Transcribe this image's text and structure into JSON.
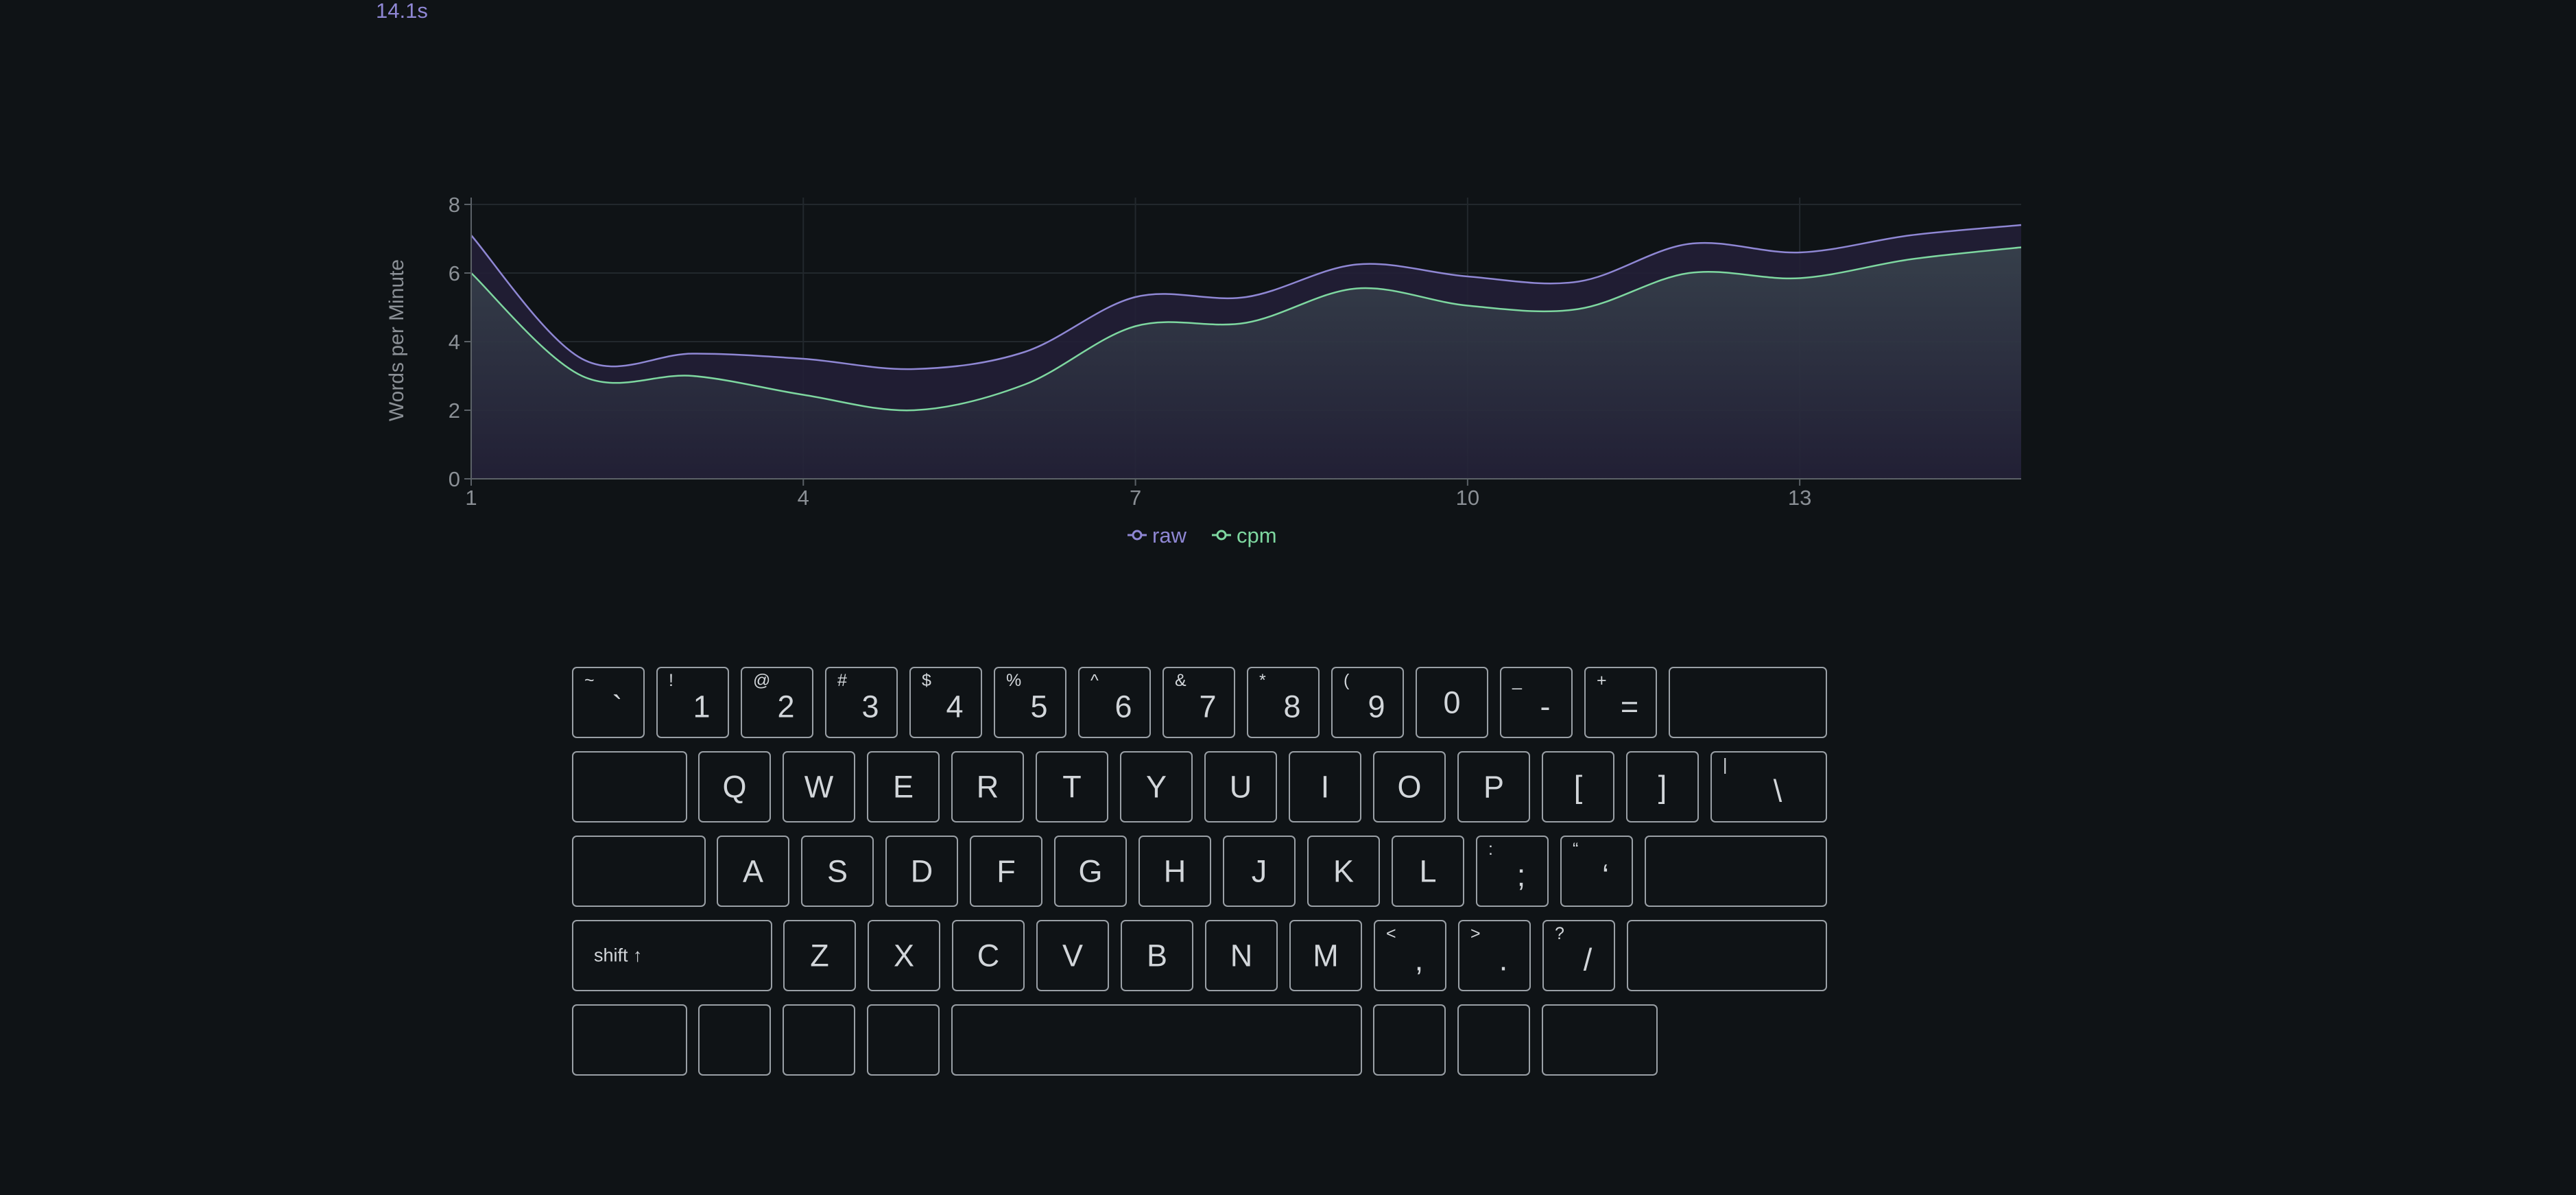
{
  "timer": "14.1s",
  "chart_data": {
    "type": "line",
    "ylabel": "Words per Minute",
    "xlabel": "",
    "xlim": [
      1,
      15
    ],
    "ylim": [
      0,
      8
    ],
    "x_ticks": [
      "1",
      "4",
      "7",
      "10",
      "13"
    ],
    "y_ticks": [
      "0",
      "2",
      "4",
      "6",
      "8"
    ],
    "x": [
      1,
      2,
      3,
      4,
      5,
      6,
      7,
      8,
      9,
      10,
      11,
      12,
      13,
      14,
      15
    ],
    "grid": true,
    "legend_position": "bottom-center",
    "series": [
      {
        "name": "raw",
        "color": "#8f87d4",
        "values": [
          7.1,
          3.5,
          3.65,
          3.5,
          3.2,
          3.7,
          5.3,
          5.3,
          6.25,
          5.9,
          5.75,
          6.85,
          6.6,
          7.1,
          7.4
        ]
      },
      {
        "name": "cpm",
        "color": "#7ed7a0",
        "values": [
          6.0,
          3.0,
          3.0,
          2.45,
          2.0,
          2.75,
          4.45,
          4.55,
          5.55,
          5.05,
          4.95,
          6.0,
          5.85,
          6.4,
          6.75
        ]
      }
    ]
  },
  "keyboard": {
    "rows": [
      [
        {
          "k": "`",
          "s": "~"
        },
        {
          "k": "1",
          "s": "!"
        },
        {
          "k": "2",
          "s": "@"
        },
        {
          "k": "3",
          "s": "#"
        },
        {
          "k": "4",
          "s": "$"
        },
        {
          "k": "5",
          "s": "%"
        },
        {
          "k": "6",
          "s": "^"
        },
        {
          "k": "7",
          "s": "&"
        },
        {
          "k": "8",
          "s": "*"
        },
        {
          "k": "9",
          "s": "("
        },
        {
          "k": "0",
          "s": ""
        },
        {
          "k": "-",
          "s": "_"
        },
        {
          "k": "=",
          "s": "+"
        },
        {
          "k": "",
          "s": ""
        }
      ],
      [
        {
          "k": "",
          "s": ""
        },
        {
          "k": "Q",
          "s": ""
        },
        {
          "k": "W",
          "s": ""
        },
        {
          "k": "E",
          "s": ""
        },
        {
          "k": "R",
          "s": ""
        },
        {
          "k": "T",
          "s": ""
        },
        {
          "k": "Y",
          "s": ""
        },
        {
          "k": "U",
          "s": ""
        },
        {
          "k": "I",
          "s": ""
        },
        {
          "k": "O",
          "s": ""
        },
        {
          "k": "P",
          "s": ""
        },
        {
          "k": "[",
          "s": ""
        },
        {
          "k": "]",
          "s": ""
        },
        {
          "k": "\\",
          "s": "|"
        }
      ],
      [
        {
          "k": "",
          "s": ""
        },
        {
          "k": "A",
          "s": ""
        },
        {
          "k": "S",
          "s": ""
        },
        {
          "k": "D",
          "s": ""
        },
        {
          "k": "F",
          "s": ""
        },
        {
          "k": "G",
          "s": ""
        },
        {
          "k": "H",
          "s": ""
        },
        {
          "k": "J",
          "s": ""
        },
        {
          "k": "K",
          "s": ""
        },
        {
          "k": "L",
          "s": ""
        },
        {
          "k": ";",
          "s": ":"
        },
        {
          "k": "‘",
          "s": "“"
        },
        {
          "k": "",
          "s": ""
        }
      ],
      [
        {
          "k": "shift ↑",
          "s": "",
          "mod": true
        },
        {
          "k": "Z",
          "s": ""
        },
        {
          "k": "X",
          "s": ""
        },
        {
          "k": "C",
          "s": ""
        },
        {
          "k": "V",
          "s": ""
        },
        {
          "k": "B",
          "s": ""
        },
        {
          "k": "N",
          "s": ""
        },
        {
          "k": "M",
          "s": ""
        },
        {
          "k": ",",
          "s": "<"
        },
        {
          "k": ".",
          "s": ">"
        },
        {
          "k": "/",
          "s": "?"
        },
        {
          "k": "",
          "s": ""
        }
      ],
      [
        {
          "k": "",
          "s": ""
        },
        {
          "k": "",
          "s": ""
        },
        {
          "k": "",
          "s": ""
        },
        {
          "k": "",
          "s": ""
        },
        {
          "k": "",
          "s": ""
        },
        {
          "k": "",
          "s": ""
        },
        {
          "k": "",
          "s": ""
        },
        {
          "k": "",
          "s": ""
        }
      ]
    ]
  }
}
